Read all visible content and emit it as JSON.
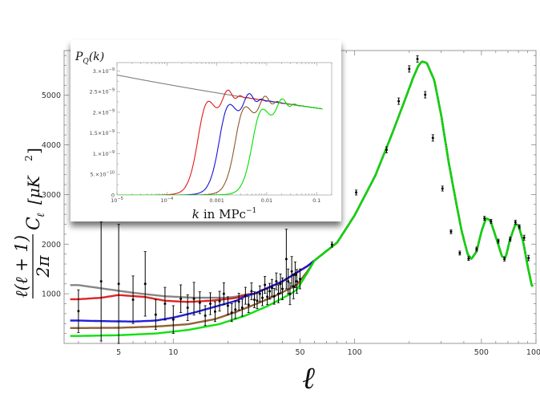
{
  "chart_data": [
    {
      "type": "line",
      "xscale": "log",
      "xlim": [
        2.5,
        1000
      ],
      "ylim": [
        0,
        5900
      ],
      "xlabel": "ℓ",
      "ylabel_frac_num": "ℓ(ℓ + 1)",
      "ylabel_frac_den": "2π",
      "ylabel_cl": "C",
      "ylabel_cl_sub": "ℓ",
      "ylabel_units": "[μK",
      "ylabel_units_sup": "2",
      "ylabel_units_close": "]",
      "xticks": [
        {
          "value": 5,
          "label": "5"
        },
        {
          "value": 10,
          "label": "10"
        },
        {
          "value": 50,
          "label": "50"
        },
        {
          "value": 100,
          "label": "100"
        },
        {
          "value": 500,
          "label": "500"
        },
        {
          "value": 1000,
          "label": "1000"
        }
      ],
      "yticks": [
        {
          "value": 1000,
          "label": "1000"
        },
        {
          "value": 2000,
          "label": "2000"
        },
        {
          "value": 3000,
          "label": "3000"
        },
        {
          "value": 4000,
          "label": "4000"
        },
        {
          "value": 5000,
          "label": "5000"
        }
      ],
      "high_ell_curve": [
        [
          28,
          1000
        ],
        [
          40,
          1250
        ],
        [
          55,
          1560
        ],
        [
          80,
          2030
        ],
        [
          100,
          2580
        ],
        [
          130,
          3380
        ],
        [
          160,
          4200
        ],
        [
          190,
          4920
        ],
        [
          210,
          5350
        ],
        [
          225,
          5600
        ],
        [
          235,
          5680
        ],
        [
          250,
          5650
        ],
        [
          275,
          5300
        ],
        [
          300,
          4600
        ],
        [
          330,
          3650
        ],
        [
          360,
          2900
        ],
        [
          390,
          2250
        ],
        [
          420,
          1800
        ],
        [
          440,
          1700
        ],
        [
          470,
          1850
        ],
        [
          500,
          2250
        ],
        [
          530,
          2520
        ],
        [
          560,
          2480
        ],
        [
          600,
          2150
        ],
        [
          650,
          1750
        ],
        [
          680,
          1730
        ],
        [
          720,
          2100
        ],
        [
          770,
          2400
        ],
        [
          800,
          2380
        ],
        [
          850,
          2050
        ],
        [
          900,
          1550
        ],
        [
          950,
          1150
        ]
      ],
      "series": [
        {
          "name": "gray",
          "color": "#808080",
          "low_ell": [
            [
              3,
              1175
            ],
            [
              4,
              1110
            ],
            [
              6,
              1020
            ],
            [
              9,
              950
            ],
            [
              13,
              920
            ],
            [
              20,
              920
            ],
            [
              28,
              995
            ]
          ]
        },
        {
          "name": "red",
          "color": "#e01818",
          "low_ell": [
            [
              3,
              890
            ],
            [
              4,
              920
            ],
            [
              5,
              975
            ],
            [
              7,
              935
            ],
            [
              9,
              860
            ],
            [
              12,
              835
            ],
            [
              16,
              860
            ],
            [
              21,
              905
            ],
            [
              28,
              975
            ]
          ]
        },
        {
          "name": "blue",
          "color": "#1414d8",
          "low_ell": [
            [
              3,
              460
            ],
            [
              4,
              450
            ],
            [
              6,
              440
            ],
            [
              8,
              460
            ],
            [
              10,
              520
            ],
            [
              13,
              620
            ],
            [
              17,
              740
            ],
            [
              22,
              855
            ],
            [
              28,
              950
            ]
          ]
        },
        {
          "name": "brown",
          "color": "#8b5a2b",
          "low_ell": [
            [
              3,
              310
            ],
            [
              5,
              315
            ],
            [
              8,
              340
            ],
            [
              12,
              385
            ],
            [
              17,
              490
            ],
            [
              22,
              630
            ],
            [
              28,
              780
            ],
            [
              36,
              950
            ],
            [
              46,
              1140
            ],
            [
              60,
              1400
            ]
          ]
        },
        {
          "name": "green",
          "color": "#00e000",
          "low_ell": [
            [
              3,
              150
            ],
            [
              5,
              165
            ],
            [
              8,
              200
            ],
            [
              12,
              270
            ],
            [
              18,
              390
            ],
            [
              25,
              560
            ],
            [
              33,
              750
            ],
            [
              45,
              1010
            ],
            [
              60,
              1340
            ]
          ]
        }
      ],
      "data_points": [
        {
          "l": 3,
          "v": 650,
          "e": 430
        },
        {
          "l": 4,
          "v": 1250,
          "e": 1200
        },
        {
          "l": 5,
          "v": 1200,
          "e": 1200
        },
        {
          "l": 6,
          "v": 880,
          "e": 480
        },
        {
          "l": 7,
          "v": 1200,
          "e": 650
        },
        {
          "l": 8,
          "v": 580,
          "e": 300
        },
        {
          "l": 9,
          "v": 800,
          "e": 330
        },
        {
          "l": 10,
          "v": 480,
          "e": 280
        },
        {
          "l": 11,
          "v": 900,
          "e": 280
        },
        {
          "l": 12,
          "v": 720,
          "e": 260
        },
        {
          "l": 13,
          "v": 900,
          "e": 330
        },
        {
          "l": 14,
          "v": 820,
          "e": 220
        },
        {
          "l": 15,
          "v": 560,
          "e": 200
        },
        {
          "l": 16,
          "v": 800,
          "e": 220
        },
        {
          "l": 17,
          "v": 640,
          "e": 200
        },
        {
          "l": 18,
          "v": 850,
          "e": 200
        },
        {
          "l": 19,
          "v": 1000,
          "e": 220
        },
        {
          "l": 20,
          "v": 760,
          "e": 180
        },
        {
          "l": 21,
          "v": 620,
          "e": 180
        },
        {
          "l": 22,
          "v": 680,
          "e": 180
        },
        {
          "l": 23,
          "v": 840,
          "e": 170
        },
        {
          "l": 24,
          "v": 720,
          "e": 170
        },
        {
          "l": 25,
          "v": 960,
          "e": 170
        },
        {
          "l": 26,
          "v": 780,
          "e": 160
        },
        {
          "l": 27,
          "v": 1050,
          "e": 170
        },
        {
          "l": 28,
          "v": 880,
          "e": 160
        },
        {
          "l": 29,
          "v": 860,
          "e": 160
        },
        {
          "l": 30,
          "v": 1000,
          "e": 160
        },
        {
          "l": 31,
          "v": 920,
          "e": 160
        },
        {
          "l": 32,
          "v": 1180,
          "e": 170
        },
        {
          "l": 33,
          "v": 940,
          "e": 160
        },
        {
          "l": 34,
          "v": 1050,
          "e": 160
        },
        {
          "l": 35,
          "v": 1120,
          "e": 170
        },
        {
          "l": 36,
          "v": 950,
          "e": 160
        },
        {
          "l": 37,
          "v": 1250,
          "e": 170
        },
        {
          "l": 38,
          "v": 1000,
          "e": 180
        },
        {
          "l": 39,
          "v": 1200,
          "e": 200
        },
        {
          "l": 40,
          "v": 1100,
          "e": 220
        },
        {
          "l": 42,
          "v": 1700,
          "e": 600
        },
        {
          "l": 43,
          "v": 1250,
          "e": 250
        },
        {
          "l": 44,
          "v": 1000,
          "e": 220
        },
        {
          "l": 45,
          "v": 1450,
          "e": 300
        },
        {
          "l": 46,
          "v": 1150,
          "e": 250
        },
        {
          "l": 47,
          "v": 1380,
          "e": 260
        },
        {
          "l": 48,
          "v": 1250,
          "e": 240
        },
        {
          "l": 50,
          "v": 1300,
          "e": 200
        },
        {
          "l": 75,
          "v": 1990,
          "e": 50
        },
        {
          "l": 102,
          "v": 3040,
          "e": 50
        },
        {
          "l": 150,
          "v": 3900,
          "e": 60
        },
        {
          "l": 175,
          "v": 4880,
          "e": 65
        },
        {
          "l": 200,
          "v": 5530,
          "e": 65
        },
        {
          "l": 222,
          "v": 5730,
          "e": 65
        },
        {
          "l": 245,
          "v": 5010,
          "e": 65
        },
        {
          "l": 270,
          "v": 4140,
          "e": 65
        },
        {
          "l": 305,
          "v": 3120,
          "e": 50
        },
        {
          "l": 340,
          "v": 2250,
          "e": 40
        },
        {
          "l": 380,
          "v": 1820,
          "e": 40
        },
        {
          "l": 425,
          "v": 1710,
          "e": 40
        },
        {
          "l": 470,
          "v": 1900,
          "e": 40
        },
        {
          "l": 520,
          "v": 2520,
          "e": 40
        },
        {
          "l": 565,
          "v": 2460,
          "e": 40
        },
        {
          "l": 620,
          "v": 2060,
          "e": 40
        },
        {
          "l": 670,
          "v": 1700,
          "e": 40
        },
        {
          "l": 720,
          "v": 2100,
          "e": 40
        },
        {
          "l": 770,
          "v": 2440,
          "e": 40
        },
        {
          "l": 810,
          "v": 2350,
          "e": 40
        },
        {
          "l": 860,
          "v": 2130,
          "e": 50
        },
        {
          "l": 910,
          "v": 1720,
          "e": 55
        }
      ]
    },
    {
      "type": "line",
      "xscale": "log",
      "title": "P",
      "title_sub": "Q",
      "title_rest": "(k)",
      "xlabel_italic": "k",
      "xlabel_rest": "in MPc",
      "xlabel_sup": "−1",
      "xlim": [
        1e-05,
        0.2
      ],
      "ylim": [
        0,
        3.2e-09
      ],
      "xticks": [
        {
          "value": 1e-05,
          "label": "10",
          "sup": "−5"
        },
        {
          "value": 0.0001,
          "label": "10",
          "sup": "−4"
        },
        {
          "value": 0.001,
          "label": "0.001",
          "sup": ""
        },
        {
          "value": 0.01,
          "label": "0.01",
          "sup": ""
        },
        {
          "value": 0.1,
          "label": "0.1",
          "sup": ""
        }
      ],
      "yticks": [
        {
          "value": 0,
          "label": "0",
          "sup": ""
        },
        {
          "value": 5e-10,
          "label": "5.×10",
          "sup": "−10"
        },
        {
          "value": 1e-09,
          "label": "1.×10",
          "sup": "−9"
        },
        {
          "value": 1.5e-09,
          "label": "1.5×10",
          "sup": "−9"
        },
        {
          "value": 2e-09,
          "label": "2.×10",
          "sup": "−9"
        },
        {
          "value": 2.5e-09,
          "label": "2.5×10",
          "sup": "−9"
        },
        {
          "value": 3e-09,
          "label": "3.×10",
          "sup": "−9"
        }
      ],
      "series": [
        {
          "name": "gray",
          "color": "#808080",
          "kc": null
        },
        {
          "name": "red",
          "color": "#e01818",
          "kc": 0.00045
        },
        {
          "name": "blue",
          "color": "#1414d8",
          "kc": 0.0012
        },
        {
          "name": "brown",
          "color": "#8b5a2b",
          "kc": 0.0025
        },
        {
          "name": "green",
          "color": "#00e000",
          "kc": 0.0055
        }
      ]
    }
  ]
}
